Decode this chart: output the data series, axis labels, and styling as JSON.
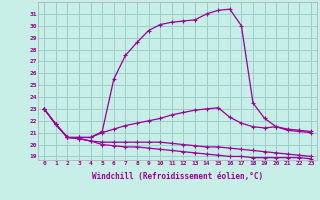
{
  "xlabel": "Windchill (Refroidissement éolien,°C)",
  "background_color": "#c8eee8",
  "grid_color": "#9ecfca",
  "line_color": "#990099",
  "x_hours": [
    0,
    1,
    2,
    3,
    4,
    5,
    6,
    7,
    8,
    9,
    10,
    11,
    12,
    13,
    14,
    15,
    16,
    17,
    18,
    19,
    20,
    21,
    22,
    23
  ],
  "curve_upper": [
    23.0,
    21.7,
    20.6,
    20.6,
    20.6,
    21.1,
    25.5,
    27.5,
    28.6,
    29.6,
    30.1,
    30.3,
    30.4,
    30.5,
    31.0,
    31.3,
    31.4,
    30.0,
    23.5,
    22.2,
    21.5,
    21.2,
    21.1,
    21.0
  ],
  "curve_mid": [
    23.0,
    21.7,
    20.6,
    20.6,
    20.6,
    21.0,
    21.3,
    21.6,
    21.8,
    22.0,
    22.2,
    22.5,
    22.7,
    22.9,
    23.0,
    23.1,
    22.3,
    21.8,
    21.5,
    21.4,
    21.5,
    21.3,
    21.2,
    21.1
  ],
  "curve_lower1": [
    23.0,
    21.7,
    20.6,
    20.5,
    20.3,
    20.2,
    20.2,
    20.2,
    20.2,
    20.2,
    20.2,
    20.1,
    20.0,
    19.9,
    19.8,
    19.8,
    19.7,
    19.6,
    19.5,
    19.4,
    19.3,
    19.2,
    19.1,
    19.0
  ],
  "curve_lower2": [
    23.0,
    21.7,
    20.6,
    20.5,
    20.3,
    20.0,
    19.9,
    19.8,
    19.8,
    19.7,
    19.6,
    19.5,
    19.4,
    19.3,
    19.2,
    19.1,
    19.0,
    19.0,
    18.9,
    18.9,
    18.9,
    18.9,
    18.9,
    18.8
  ],
  "ylim": [
    18.7,
    32.0
  ],
  "xlim": [
    -0.5,
    23.5
  ],
  "yticks": [
    19,
    20,
    21,
    22,
    23,
    24,
    25,
    26,
    27,
    28,
    29,
    30,
    31
  ],
  "xticks": [
    0,
    1,
    2,
    3,
    4,
    5,
    6,
    7,
    8,
    9,
    10,
    11,
    12,
    13,
    14,
    15,
    16,
    17,
    18,
    19,
    20,
    21,
    22,
    23
  ]
}
